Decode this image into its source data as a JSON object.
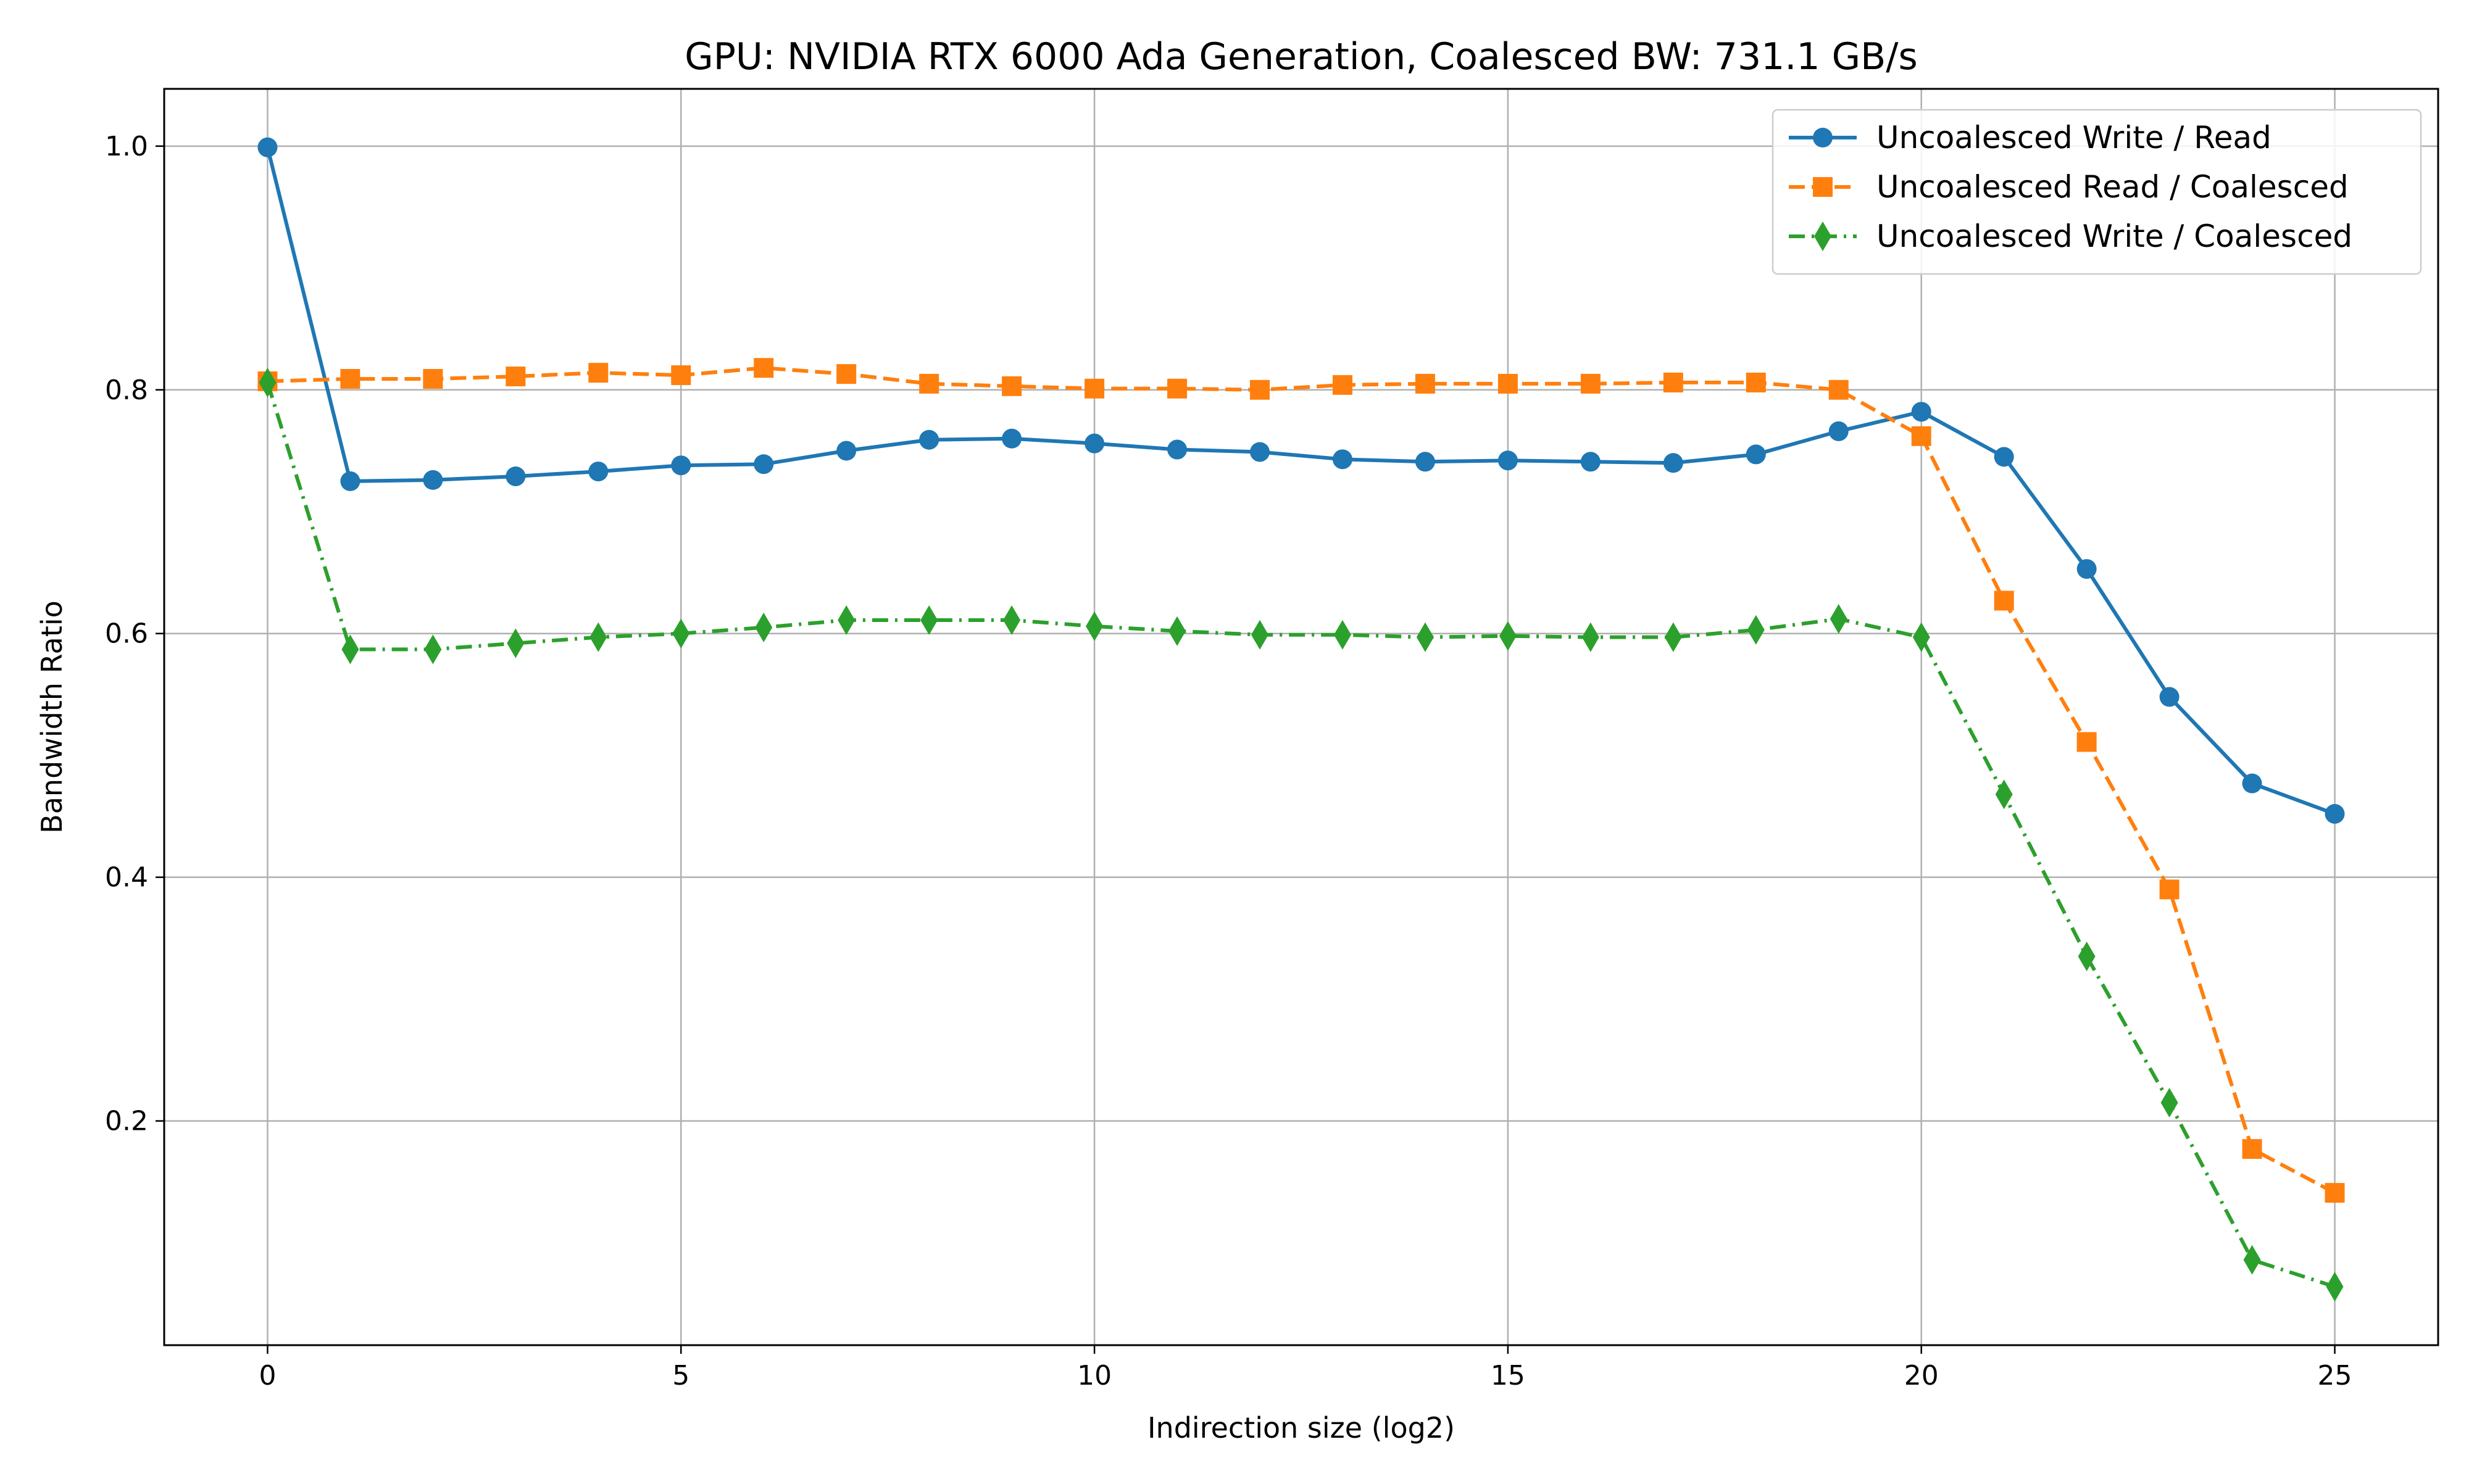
{
  "chart_data": {
    "type": "line",
    "title": "GPU: NVIDIA RTX 6000 Ada Generation, Coalesced BW: 731.1 GB/s",
    "xlabel": "Indirection size (log2)",
    "ylabel": "Bandwidth Ratio",
    "xlim": [
      -1.25,
      26.25
    ],
    "ylim": [
      0.016,
      1.047
    ],
    "xticks": [
      0,
      5,
      10,
      15,
      20,
      25
    ],
    "yticks": [
      0.2,
      0.4,
      0.6,
      0.8,
      1.0
    ],
    "xtick_labels": [
      "0",
      "5",
      "10",
      "15",
      "20",
      "25"
    ],
    "ytick_labels": [
      "0.2",
      "0.4",
      "0.6",
      "0.8",
      "1.0"
    ],
    "grid": true,
    "legend_position": "top-right",
    "x": [
      0,
      1,
      2,
      3,
      4,
      5,
      6,
      7,
      8,
      9,
      10,
      11,
      12,
      13,
      14,
      15,
      16,
      17,
      18,
      19,
      20,
      21,
      22,
      23,
      24,
      25
    ],
    "series": [
      {
        "name": "Uncoalesced Write / Read",
        "color": "#1f77b4",
        "line_style": "solid",
        "marker": "circle",
        "values": [
          0.999,
          0.725,
          0.726,
          0.729,
          0.733,
          0.738,
          0.739,
          0.75,
          0.759,
          0.76,
          0.756,
          0.751,
          0.749,
          0.743,
          0.741,
          0.742,
          0.741,
          0.74,
          0.747,
          0.766,
          0.782,
          0.745,
          0.653,
          0.548,
          0.477,
          0.452
        ]
      },
      {
        "name": "Uncoalesced Read / Coalesced",
        "color": "#ff7f0e",
        "line_style": "dashed",
        "marker": "square",
        "values": [
          0.807,
          0.809,
          0.809,
          0.811,
          0.814,
          0.812,
          0.818,
          0.813,
          0.805,
          0.803,
          0.801,
          0.801,
          0.8,
          0.804,
          0.805,
          0.805,
          0.805,
          0.806,
          0.806,
          0.8,
          0.762,
          0.627,
          0.511,
          0.39,
          0.177,
          0.141
        ]
      },
      {
        "name": "Uncoalesced Write / Coalesced",
        "color": "#2ca02c",
        "line_style": "dashdot",
        "marker": "diamond",
        "values": [
          0.806,
          0.587,
          0.587,
          0.592,
          0.597,
          0.6,
          0.605,
          0.611,
          0.611,
          0.611,
          0.606,
          0.602,
          0.599,
          0.599,
          0.597,
          0.598,
          0.597,
          0.597,
          0.603,
          0.612,
          0.597,
          0.468,
          0.335,
          0.215,
          0.086,
          0.064
        ]
      }
    ]
  }
}
